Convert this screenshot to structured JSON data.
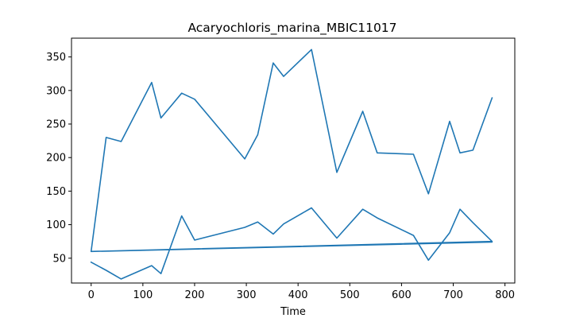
{
  "chart_data": {
    "type": "line",
    "title": "Acaryochloris_marina_MBIC11017",
    "xlabel": "Time",
    "ylabel": "",
    "xlim": [
      -38,
      819
    ],
    "ylim": [
      13,
      378
    ],
    "xticks": [
      0,
      100,
      200,
      300,
      400,
      500,
      600,
      700,
      800
    ],
    "yticks": [
      50,
      100,
      150,
      200,
      250,
      300,
      350
    ],
    "grid": false,
    "color": "#1f77b4",
    "series": [
      {
        "points": [
          [
            0,
            44
          ],
          [
            29,
            32
          ],
          [
            58,
            19
          ],
          [
            117,
            39
          ],
          [
            135,
            27
          ],
          [
            175,
            113
          ],
          [
            200,
            77
          ],
          [
            297,
            96
          ],
          [
            322,
            104
          ],
          [
            352,
            86
          ],
          [
            372,
            101
          ],
          [
            426,
            125
          ],
          [
            475,
            80
          ],
          [
            525,
            123
          ],
          [
            553,
            110
          ],
          [
            623,
            84
          ],
          [
            652,
            47
          ],
          [
            693,
            88
          ],
          [
            713,
            123
          ],
          [
            738,
            103
          ],
          [
            775,
            75
          ],
          [
            0,
            60
          ],
          [
            775,
            74
          ],
          [
            0,
            60
          ],
          [
            29,
            230
          ],
          [
            58,
            224
          ],
          [
            117,
            312
          ],
          [
            135,
            259
          ],
          [
            175,
            296
          ],
          [
            200,
            287
          ],
          [
            297,
            198
          ],
          [
            322,
            234
          ],
          [
            352,
            341
          ],
          [
            372,
            321
          ],
          [
            426,
            361
          ],
          [
            475,
            178
          ],
          [
            525,
            269
          ],
          [
            553,
            207
          ],
          [
            623,
            205
          ],
          [
            652,
            146
          ],
          [
            693,
            254
          ],
          [
            713,
            207
          ],
          [
            738,
            211
          ],
          [
            775,
            289
          ]
        ]
      }
    ]
  }
}
